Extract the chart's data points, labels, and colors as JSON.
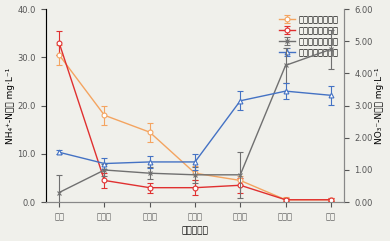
{
  "categories": [
    "进水",
    "厌氧池",
    "缺氧池",
    "好氧池",
    "混合池",
    "好氧池",
    "出水"
  ],
  "xlabel": "各个反应器",
  "ylabel_left": "NH₄⁺-N浓度 mg·L⁻¹",
  "ylabel_right": "NO₃⁻-N浓度 mg·L⁻¹",
  "ylim_left": [
    0.0,
    40.0
  ],
  "ylim_right": [
    0.0,
    6.0
  ],
  "yticks_left": [
    0.0,
    10.0,
    20.0,
    30.0,
    40.0
  ],
  "yticks_right": [
    0.0,
    1.0,
    2.0,
    3.0,
    4.0,
    5.0,
    6.0
  ],
  "series": [
    {
      "label": "投加纤维素前氨氮",
      "color": "#f4a460",
      "marker": "o",
      "marker_face": "white",
      "linestyle": "-",
      "axis": "left",
      "values": [
        30.5,
        18.0,
        14.5,
        6.0,
        4.5,
        0.5,
        0.5
      ],
      "errors": [
        2.0,
        2.0,
        2.0,
        1.5,
        1.0,
        0.5,
        0.3
      ]
    },
    {
      "label": "投加纤维素后氨氮",
      "color": "#e03030",
      "marker": "o",
      "marker_face": "white",
      "linestyle": "-",
      "axis": "left",
      "values": [
        33.0,
        4.5,
        3.0,
        3.0,
        3.5,
        0.5,
        0.5
      ],
      "errors": [
        2.5,
        1.5,
        1.0,
        1.5,
        1.5,
        0.3,
        0.3
      ]
    },
    {
      "label": "投加纤维素前硝氮",
      "color": "#707070",
      "marker": "x",
      "marker_face": "auto",
      "linestyle": "-",
      "axis": "right",
      "values": [
        0.3,
        1.0,
        0.9,
        0.85,
        0.85,
        4.25,
        4.75
      ],
      "errors": [
        0.53,
        0.18,
        0.18,
        0.24,
        0.72,
        0.54,
        0.6
      ]
    },
    {
      "label": "投加纤维素后硝氮",
      "color": "#4472c4",
      "marker": "^",
      "marker_face": "white",
      "linestyle": "-",
      "axis": "right",
      "values": [
        1.55,
        1.2,
        1.25,
        1.25,
        3.15,
        3.45,
        3.32
      ],
      "errors": [
        0.06,
        0.18,
        0.18,
        0.24,
        0.3,
        0.24,
        0.3
      ]
    }
  ],
  "legend_fontsize": 6.0,
  "tick_fontsize": 6.0,
  "label_fontsize": 6.5,
  "background_color": "#f0f0eb"
}
